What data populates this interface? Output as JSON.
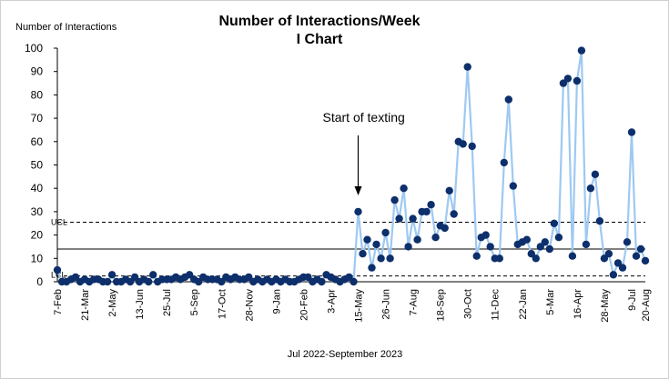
{
  "chart_data": {
    "type": "line",
    "title": "Number of Interactions/Week",
    "subtitle": "I Chart",
    "ylabel": "Number of Interactions",
    "xlabel": "Jul 2022-September 2023",
    "ylim": [
      0,
      100
    ],
    "yticks": [
      0,
      10,
      20,
      30,
      40,
      50,
      60,
      70,
      80,
      90,
      100
    ],
    "x_tick_labels": [
      "7-Feb",
      "21-Mar",
      "2-May",
      "13-Jun",
      "25-Jul",
      "5-Sep",
      "17-Oct",
      "28-Nov",
      "9-Jan",
      "20-Feb",
      "3-Apr",
      "15-May",
      "26-Jun",
      "7-Aug",
      "18-Sep",
      "30-Oct",
      "11-Dec",
      "22-Jan",
      "5-Mar",
      "16-Apr",
      "28-May",
      "9-Jul",
      "20-Aug"
    ],
    "series": [
      {
        "name": "Interactions",
        "color": "#9ec9f2",
        "marker_color": "#0d2f6b",
        "values": [
          5,
          0,
          0,
          1,
          2,
          0,
          1,
          0,
          1,
          1,
          0,
          0,
          3,
          0,
          0,
          1,
          0,
          2,
          0,
          1,
          0,
          3,
          0,
          1,
          1,
          1,
          2,
          1,
          2,
          3,
          1,
          0,
          2,
          1,
          1,
          1,
          0,
          2,
          1,
          2,
          1,
          1,
          2,
          0,
          1,
          0,
          1,
          0,
          1,
          0,
          1,
          0,
          0,
          1,
          2,
          2,
          0,
          1,
          0,
          3,
          2,
          1,
          0,
          1,
          2,
          0,
          30,
          12,
          18,
          6,
          16,
          10,
          21,
          10,
          35,
          27,
          40,
          15,
          27,
          18,
          30,
          30,
          33,
          19,
          24,
          23,
          39,
          29,
          60,
          59,
          92,
          58,
          11,
          19,
          20,
          15,
          10,
          10,
          51,
          78,
          41,
          16,
          17,
          18,
          12,
          10,
          15,
          17,
          14,
          25,
          19,
          85,
          87,
          11,
          86,
          99,
          16,
          40,
          46,
          26,
          10,
          12,
          3,
          8,
          6,
          17,
          64,
          11,
          14,
          9
        ]
      }
    ],
    "control_limits": {
      "ucl": 25.5,
      "mean": 14,
      "lcl": 2.5,
      "ucl_label": "UCL",
      "lcl_label": "LCL"
    },
    "annotation": {
      "text": "Start of texting",
      "index": 66
    }
  }
}
